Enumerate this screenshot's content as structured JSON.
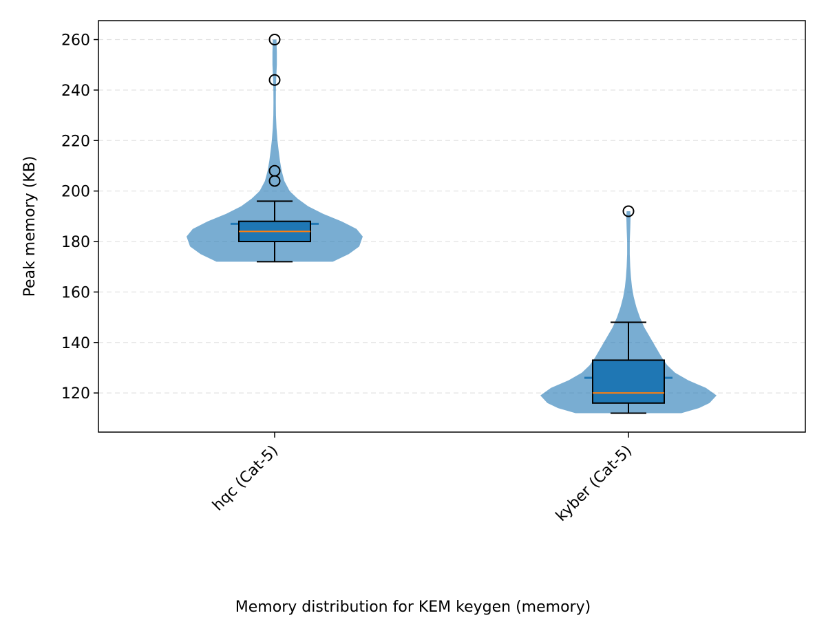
{
  "chart_data": {
    "type": "violin",
    "title": "",
    "xlabel": "Memory distribution for KEM keygen (memory)",
    "ylabel": "Peak memory (KB)",
    "ylim": [
      104.5,
      267.5
    ],
    "yticks": [
      120,
      140,
      160,
      180,
      200,
      220,
      240,
      260
    ],
    "grid": "horizontal dashed",
    "categories": [
      "hqc (Cat-5)",
      "kyber (Cat-5)"
    ],
    "series": [
      {
        "category": "hqc (Cat-5)",
        "mean": 187,
        "box": {
          "whisker_low": 172,
          "q1": 180,
          "median": 184,
          "q3": 188,
          "whisker_high": 196
        },
        "outliers": [
          204,
          208,
          244,
          260
        ],
        "violin_range": [
          172,
          260
        ],
        "density": [
          [
            172,
            0.66
          ],
          [
            175,
            0.84
          ],
          [
            178,
            0.96
          ],
          [
            182,
            1.0
          ],
          [
            185,
            0.93
          ],
          [
            188,
            0.76
          ],
          [
            191,
            0.55
          ],
          [
            194,
            0.38
          ],
          [
            197,
            0.26
          ],
          [
            200,
            0.17
          ],
          [
            204,
            0.11
          ],
          [
            208,
            0.08
          ],
          [
            212,
            0.06
          ],
          [
            216,
            0.045
          ],
          [
            220,
            0.032
          ],
          [
            225,
            0.021
          ],
          [
            230,
            0.015
          ],
          [
            235,
            0.013
          ],
          [
            240,
            0.014
          ],
          [
            245,
            0.018
          ],
          [
            250,
            0.025
          ],
          [
            255,
            0.025
          ],
          [
            260,
            0.02
          ]
        ]
      },
      {
        "category": "kyber (Cat-5)",
        "mean": 126,
        "box": {
          "whisker_low": 112,
          "q1": 116,
          "median": 120,
          "q3": 133,
          "whisker_high": 148
        },
        "outliers": [
          192
        ],
        "violin_range": [
          112,
          192
        ],
        "density": [
          [
            112,
            0.6
          ],
          [
            114,
            0.8
          ],
          [
            116,
            0.92
          ],
          [
            119,
            1.0
          ],
          [
            122,
            0.88
          ],
          [
            125,
            0.68
          ],
          [
            128,
            0.53
          ],
          [
            131,
            0.44
          ],
          [
            134,
            0.38
          ],
          [
            137,
            0.33
          ],
          [
            140,
            0.28
          ],
          [
            143,
            0.23
          ],
          [
            146,
            0.18
          ],
          [
            150,
            0.13
          ],
          [
            154,
            0.09
          ],
          [
            158,
            0.06
          ],
          [
            162,
            0.04
          ],
          [
            166,
            0.028
          ],
          [
            170,
            0.02
          ],
          [
            175,
            0.015
          ],
          [
            180,
            0.015
          ],
          [
            185,
            0.02
          ],
          [
            190,
            0.024
          ],
          [
            192,
            0.02
          ]
        ]
      }
    ],
    "colors": {
      "violin": "#1f77b4",
      "box_fill": "#1f77b4",
      "median": "#ff7f0e",
      "grid": "#cccccc"
    }
  }
}
